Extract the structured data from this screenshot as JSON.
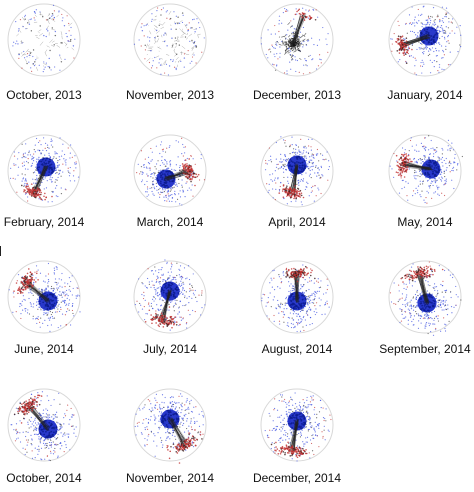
{
  "figure": {
    "panels": [
      {
        "label": "October, 2013",
        "structure": "sparse",
        "blue": 0.0,
        "red": 0.05
      },
      {
        "label": "November, 2013",
        "structure": "sparse",
        "blue": 0.0,
        "red": 0.0
      },
      {
        "label": "December, 2013",
        "structure": "core",
        "blue": 0.15,
        "red": 0.15
      },
      {
        "label": "January, 2014",
        "structure": "core-arm",
        "blue": 0.8,
        "red": 0.7
      },
      {
        "label": "February, 2014",
        "structure": "core-arm",
        "blue": 0.85,
        "red": 0.75
      },
      {
        "label": "March, 2014",
        "structure": "core-arm",
        "blue": 0.8,
        "red": 0.8
      },
      {
        "label": "April, 2014",
        "structure": "core-arm",
        "blue": 0.85,
        "red": 0.8
      },
      {
        "label": "May, 2014",
        "structure": "core-arm",
        "blue": 0.85,
        "red": 0.75
      },
      {
        "label": "June, 2014",
        "structure": "core-arm",
        "blue": 0.9,
        "red": 0.85
      },
      {
        "label": "July, 2014",
        "structure": "core-arm",
        "blue": 0.9,
        "red": 0.85
      },
      {
        "label": "August, 2014",
        "structure": "core-arm",
        "blue": 0.9,
        "red": 0.85
      },
      {
        "label": "September, 2014",
        "structure": "core-arm",
        "blue": 0.9,
        "red": 0.85
      },
      {
        "label": "October, 2014",
        "structure": "core-arm",
        "blue": 0.9,
        "red": 0.85
      },
      {
        "label": "November, 2014",
        "structure": "core-arm",
        "blue": 0.85,
        "red": 0.85
      },
      {
        "label": "December, 2014",
        "structure": "core-arm",
        "blue": 0.9,
        "red": 0.85
      }
    ],
    "colors": {
      "core_node": "#1e2ec8",
      "halo_node": "#3b4fe0",
      "peripheral_node": "#c03030",
      "edge": "#222222",
      "label_text": "#111111"
    }
  }
}
